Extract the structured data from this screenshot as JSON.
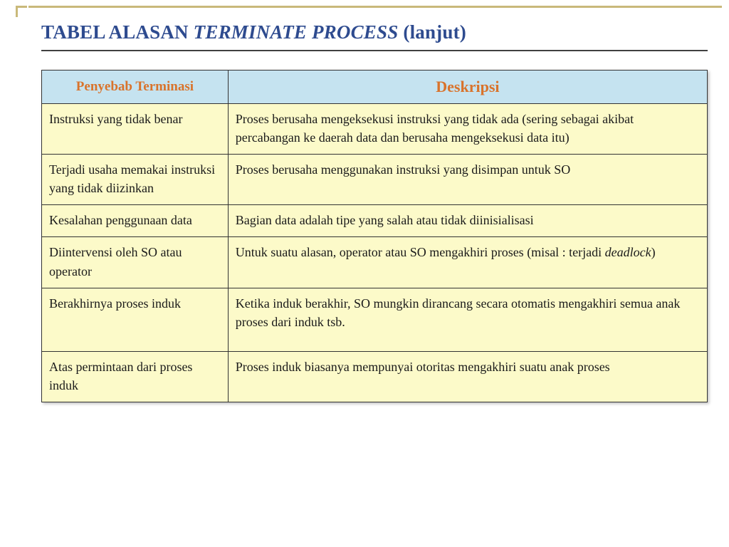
{
  "title": {
    "prefix": "TABEL ALASAN ",
    "italic": "TERMINATE PROCESS ",
    "suffix": "(lanjut)"
  },
  "table": {
    "headers": [
      "Penyebab Terminasi",
      "Deskripsi"
    ],
    "rows": [
      {
        "cause": "Instruksi yang tidak benar",
        "desc": "Proses berusaha mengeksekusi instruksi yang tidak ada (sering sebagai akibat percabangan ke daerah data dan berusaha mengeksekusi data itu)"
      },
      {
        "cause": "Terjadi usaha memakai instruksi yang tidak diizinkan",
        "desc": "Proses berusaha menggunakan instruksi yang disimpan untuk SO"
      },
      {
        "cause": "Kesalahan penggunaan data",
        "desc": "Bagian data adalah tipe yang salah atau tidak diinisialisasi"
      },
      {
        "cause": "Diintervensi oleh SO atau operator",
        "desc_pre": "Untuk suatu alasan, operator atau SO mengakhiri proses (misal : terjadi ",
        "desc_italic": "deadlock",
        "desc_post": ")"
      },
      {
        "cause": "Berakhirnya proses induk",
        "desc": "Ketika induk berakhir, SO mungkin dirancang secara otomatis mengakhiri semua anak proses dari induk tsb.",
        "tall": true
      },
      {
        "cause": "Atas permintaan dari proses induk",
        "desc": "Proses induk biasanya mempunyai otoritas mengakhiri suatu anak proses"
      }
    ]
  },
  "colors": {
    "title_color": "#2e4b8f",
    "accent_line": "#c9b97a",
    "header_bg": "#c5e3f0",
    "header_text": "#d9732b",
    "cell_bg": "#fcfac9",
    "border": "#333333"
  }
}
